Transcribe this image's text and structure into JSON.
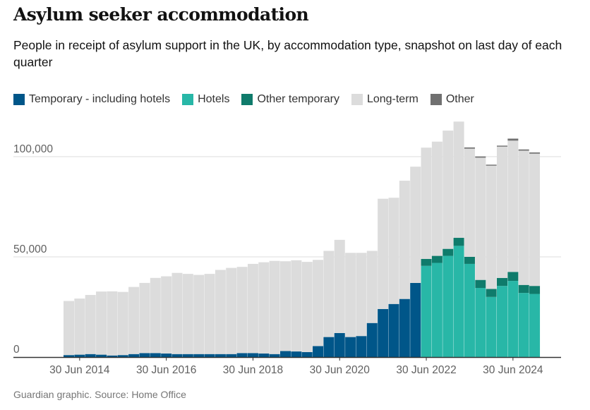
{
  "title": "Asylum seeker accommodation",
  "subtitle": "People in receipt of asylum support in the UK, by accommodation type, snapshot on last day of each quarter",
  "source": "Guardian graphic. Source: Home Office",
  "legend": [
    {
      "label": "Temporary - including hotels",
      "color": "#005689"
    },
    {
      "label": "Hotels",
      "color": "#28b7a7"
    },
    {
      "label": "Other temporary",
      "color": "#0f7b6b"
    },
    {
      "label": "Long-term",
      "color": "#dcdcdc"
    },
    {
      "label": "Other",
      "color": "#707070"
    }
  ],
  "chart_data": {
    "type": "bar",
    "stacked": true,
    "title": "Asylum seeker accommodation",
    "subtitle": "People in receipt of asylum support in the UK, by accommodation type, snapshot on last day of each quarter",
    "categories": [
      "31 Mar 2014",
      "30 Jun 2014",
      "30 Sep 2014",
      "31 Dec 2014",
      "31 Mar 2015",
      "30 Jun 2015",
      "30 Sep 2015",
      "31 Dec 2015",
      "31 Mar 2016",
      "30 Jun 2016",
      "30 Sep 2016",
      "31 Dec 2016",
      "31 Mar 2017",
      "30 Jun 2017",
      "30 Sep 2017",
      "31 Dec 2017",
      "31 Mar 2018",
      "30 Jun 2018",
      "30 Sep 2018",
      "31 Dec 2018",
      "31 Mar 2019",
      "30 Jun 2019",
      "30 Sep 2019",
      "31 Dec 2019",
      "31 Mar 2020",
      "30 Jun 2020",
      "30 Sep 2020",
      "31 Dec 2020",
      "31 Mar 2021",
      "30 Jun 2021",
      "30 Sep 2021",
      "31 Dec 2021",
      "31 Mar 2022",
      "30 Jun 2022",
      "30 Sep 2022",
      "31 Dec 2022",
      "31 Mar 2023",
      "30 Jun 2023",
      "30 Sep 2023",
      "31 Dec 2023",
      "31 Mar 2024",
      "30 Jun 2024",
      "30 Sep 2024",
      "31 Dec 2024"
    ],
    "x_ticks": [
      "30 Jun 2014",
      "30 Jun 2016",
      "30 Jun 2018",
      "30 Jun 2020",
      "30 Jun 2022",
      "30 Jun 2024"
    ],
    "series": [
      {
        "name": "Temporary - including hotels",
        "color": "#005689",
        "values": [
          1000,
          1200,
          1500,
          1200,
          800,
          1000,
          1500,
          2000,
          2000,
          1800,
          1500,
          1500,
          1500,
          1500,
          1500,
          1500,
          2000,
          2000,
          1800,
          1500,
          3000,
          2800,
          2500,
          5500,
          10000,
          12000,
          10000,
          10500,
          17000,
          24000,
          26500,
          29000,
          37000,
          null,
          null,
          null,
          null,
          null,
          null,
          null,
          null,
          null,
          null,
          null
        ]
      },
      {
        "name": "Hotels",
        "color": "#28b7a7",
        "values": [
          null,
          null,
          null,
          null,
          null,
          null,
          null,
          null,
          null,
          null,
          null,
          null,
          null,
          null,
          null,
          null,
          null,
          null,
          null,
          null,
          null,
          null,
          null,
          null,
          null,
          null,
          null,
          null,
          null,
          null,
          null,
          null,
          null,
          45500,
          47000,
          50500,
          55500,
          46500,
          34500,
          30000,
          35500,
          38000,
          32000,
          31500
        ]
      },
      {
        "name": "Other temporary",
        "color": "#0f7b6b",
        "values": [
          null,
          null,
          null,
          null,
          null,
          null,
          null,
          null,
          null,
          null,
          null,
          null,
          null,
          null,
          null,
          null,
          null,
          null,
          null,
          null,
          null,
          null,
          null,
          null,
          null,
          null,
          null,
          null,
          null,
          null,
          null,
          null,
          null,
          3500,
          3500,
          3500,
          4000,
          3500,
          4000,
          4000,
          4000,
          4500,
          4000,
          4000
        ]
      },
      {
        "name": "Long-term",
        "color": "#dcdcdc",
        "values": [
          27000,
          28000,
          29500,
          31500,
          32000,
          31500,
          33500,
          35000,
          37500,
          38500,
          40500,
          40000,
          39500,
          40000,
          42000,
          43000,
          43000,
          44500,
          45500,
          46500,
          44800,
          45500,
          45000,
          43000,
          43000,
          46500,
          42000,
          41500,
          36000,
          55000,
          53000,
          59000,
          58000,
          55500,
          57000,
          59000,
          58000,
          54000,
          61000,
          61500,
          65500,
          65500,
          67000,
          66000
        ]
      },
      {
        "name": "Other",
        "color": "#707070",
        "values": [
          null,
          null,
          null,
          null,
          null,
          null,
          null,
          null,
          null,
          null,
          null,
          null,
          null,
          null,
          null,
          null,
          null,
          null,
          null,
          null,
          null,
          null,
          null,
          null,
          null,
          null,
          null,
          null,
          null,
          null,
          null,
          null,
          null,
          null,
          null,
          null,
          null,
          600,
          600,
          500,
          500,
          1000,
          600,
          600
        ]
      }
    ],
    "ylim": [
      0,
      120000
    ],
    "y_ticks": [
      0,
      50000,
      100000
    ],
    "y_tick_labels": [
      "0",
      "50,000",
      "100,000"
    ],
    "grid": true
  }
}
